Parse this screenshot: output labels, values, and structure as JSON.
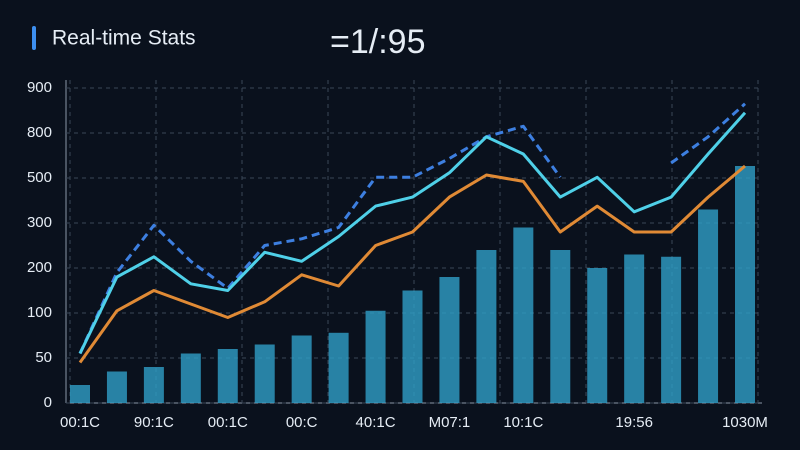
{
  "header": {
    "title": "Real-time Stats",
    "counter": "=1/:95"
  },
  "chart_data": {
    "type": "bar-line",
    "categories": [
      "00:1C",
      null,
      "90:1C",
      null,
      "00:1C",
      null,
      "00:C",
      null,
      "40:1C",
      null,
      "M07:1",
      null,
      "10:1C",
      null,
      null,
      "19:56",
      null,
      null,
      "1030M"
    ],
    "values": [
      20,
      35,
      40,
      55,
      60,
      65,
      75,
      78,
      105,
      150,
      180,
      240,
      290,
      240,
      200,
      230,
      225,
      360,
      580
    ],
    "color": "#2f9fc8",
    "series": [
      {
        "color": "#3d7fe0",
        "line_style": "dashed",
        "values": [
          55,
          190,
          295,
          215,
          155,
          250,
          265,
          290,
          505,
          505,
          630,
          775,
          815,
          505,
          null,
          null,
          600,
          775,
          865
        ]
      },
      {
        "color": "#4fd0e8",
        "line_style": "solid",
        "values": [
          55,
          180,
          225,
          165,
          150,
          235,
          215,
          270,
          375,
          415,
          535,
          775,
          660,
          415,
          505,
          350,
          415,
          660,
          845
        ]
      },
      {
        "color": "#e08a35",
        "line_style": "solid",
        "values": [
          45,
          105,
          150,
          120,
          95,
          125,
          185,
          160,
          250,
          280,
          415,
          520,
          485,
          280,
          375,
          280,
          280,
          415,
          580
        ]
      }
    ],
    "ylim": [
      0,
      900
    ],
    "yticks": [
      0,
      50,
      100,
      200,
      300,
      500,
      800,
      900
    ],
    "grid": true
  }
}
